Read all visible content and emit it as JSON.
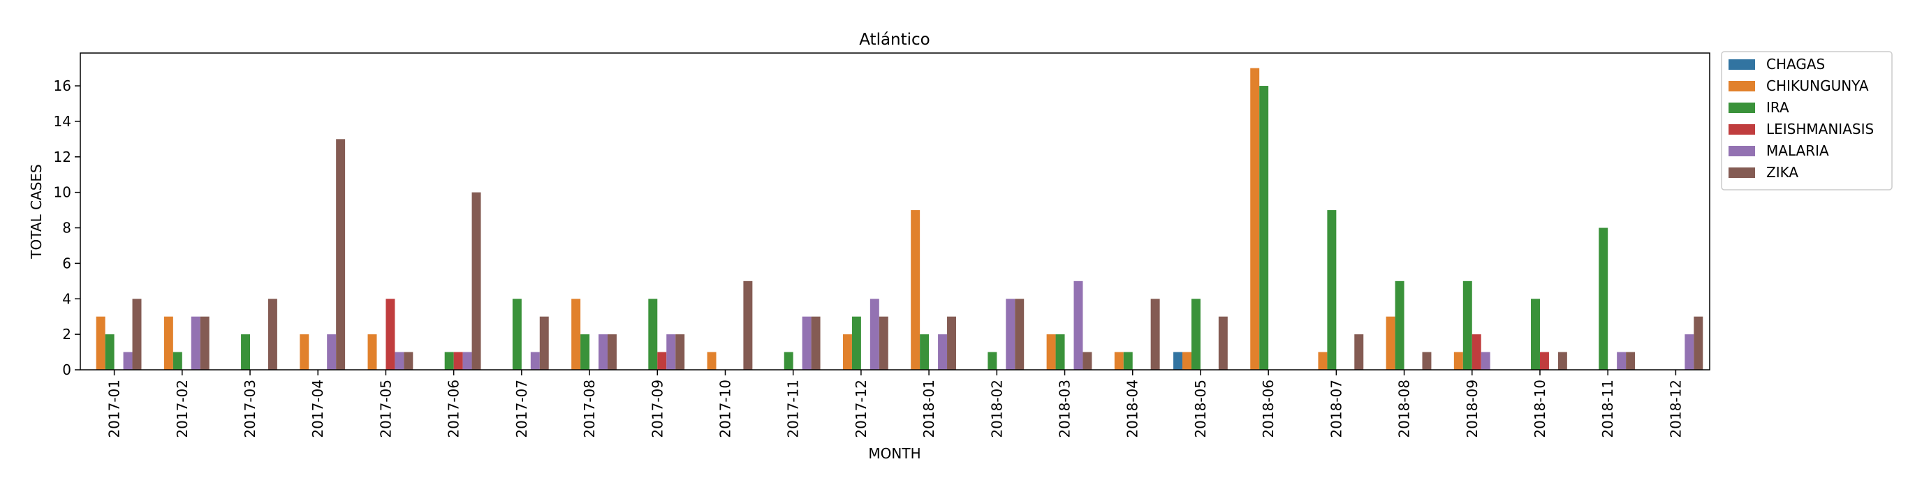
{
  "chart_data": {
    "type": "bar",
    "title": "Atlántico",
    "xlabel": "MONTH",
    "ylabel": "TOTAL CASES",
    "ylim": [
      0,
      17.85
    ],
    "yticks": [
      0,
      2,
      4,
      6,
      8,
      10,
      12,
      14,
      16
    ],
    "grid": false,
    "legend_position": "outside right, top",
    "categories": [
      "2017-01",
      "2017-02",
      "2017-03",
      "2017-04",
      "2017-05",
      "2017-06",
      "2017-07",
      "2017-08",
      "2017-09",
      "2017-10",
      "2017-11",
      "2017-12",
      "2018-01",
      "2018-02",
      "2018-03",
      "2018-04",
      "2018-05",
      "2018-06",
      "2018-07",
      "2018-08",
      "2018-09",
      "2018-10",
      "2018-11",
      "2018-12"
    ],
    "series": [
      {
        "name": "CHAGAS",
        "color": "#3274a1",
        "values": [
          0,
          0,
          0,
          0,
          0,
          0,
          0,
          0,
          0,
          0,
          0,
          0,
          0,
          0,
          0,
          0,
          1,
          0,
          0,
          0,
          0,
          0,
          0,
          0
        ]
      },
      {
        "name": "CHIKUNGUNYA",
        "color": "#e1812c",
        "values": [
          3,
          3,
          0,
          2,
          2,
          0,
          0,
          4,
          0,
          1,
          0,
          2,
          9,
          0,
          2,
          1,
          1,
          17,
          1,
          3,
          1,
          0,
          0,
          0
        ]
      },
      {
        "name": "IRA",
        "color": "#3a923a",
        "values": [
          2,
          1,
          2,
          0,
          0,
          1,
          4,
          2,
          4,
          0,
          1,
          3,
          2,
          1,
          2,
          1,
          4,
          16,
          9,
          5,
          5,
          4,
          8,
          0
        ]
      },
      {
        "name": "LEISHMANIASIS",
        "color": "#c03d3e",
        "values": [
          0,
          0,
          0,
          0,
          4,
          1,
          0,
          0,
          1,
          0,
          0,
          0,
          0,
          0,
          0,
          0,
          0,
          0,
          0,
          0,
          2,
          1,
          0,
          0
        ]
      },
      {
        "name": "MALARIA",
        "color": "#9372b2",
        "values": [
          1,
          3,
          0,
          2,
          1,
          1,
          1,
          2,
          2,
          0,
          3,
          4,
          2,
          4,
          5,
          0,
          0,
          0,
          0,
          0,
          1,
          0,
          1,
          2
        ]
      },
      {
        "name": "ZIKA",
        "color": "#845b53",
        "values": [
          4,
          3,
          4,
          13,
          1,
          10,
          3,
          2,
          2,
          5,
          3,
          3,
          3,
          4,
          1,
          4,
          3,
          0,
          2,
          1,
          0,
          1,
          1,
          3
        ]
      }
    ]
  }
}
